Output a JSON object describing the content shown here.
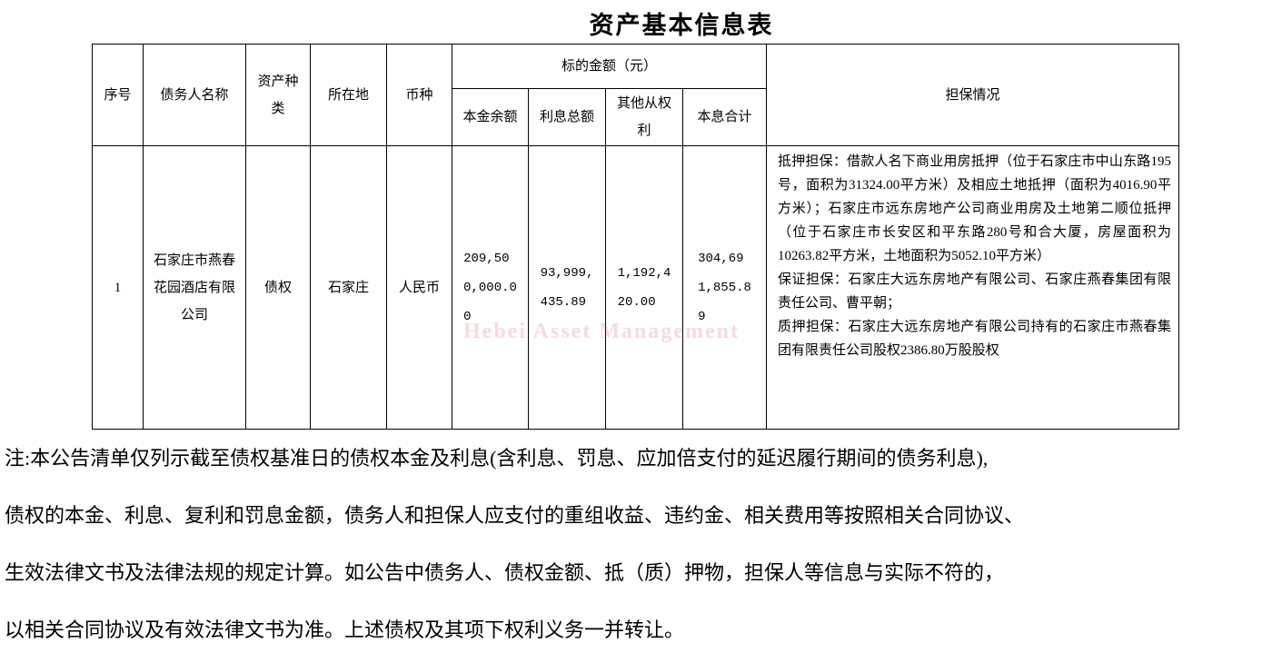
{
  "title": "资产基本信息表",
  "table": {
    "header": {
      "index": "序号",
      "debtor": "债务人名称",
      "asset_type": "资产种类",
      "location": "所在地",
      "currency": "币种",
      "amount_group": "标的金额（元）",
      "principal": "本金余额",
      "interest": "利息总额",
      "other_rights": "其他从权利",
      "total": "本息合计",
      "guarantee": "担保情况"
    },
    "rows": [
      {
        "index": "1",
        "debtor": "石家庄市燕春花园酒店有限公司",
        "asset_type": "债权",
        "location": "石家庄",
        "currency": "人民币",
        "principal": "209,500,000.00",
        "interest": "93,999,435.89",
        "other_rights": "1,192,420.00",
        "total": "304,691,855.89",
        "guarantee": [
          "抵押担保：借款人名下商业用房抵押（位于石家庄市中山东路195号，面积为31324.00平方米）及相应土地抵押（面积为4016.90平方米）；石家庄市远东房地产公司商业用房及土地第二顺位抵押（位于石家庄市长安区和平东路280号和合大厦，房屋面积为10263.82平方米，土地面积为5052.10平方米）",
          "保证担保：石家庄大远东房地产有限公司、石家庄燕春集团有限责任公司、曹平朝；",
          "质押担保：石家庄大远东房地产有限公司持有的石家庄市燕春集团有限责任公司股权2386.80万股股权"
        ]
      }
    ]
  },
  "watermark": "Hebei Asset Management",
  "note": {
    "lines": [
      "注:本公告清单仅列示截至债权基准日的债权本金及利息(含利息、罚息、应加倍支付的延迟履行期间的债务利息),",
      "债权的本金、利息、复利和罚息金额，债务人和担保人应支付的重组收益、违约金、相关费用等按照相关合同协议、",
      "生效法律文书及法律法规的规定计算。如公告中债务人、债权金额、抵（质）押物，担保人等信息与实际不符的，",
      "以相关合同协议及有效法律文书为准。上述债权及其项下权利义务一并转让。"
    ]
  }
}
